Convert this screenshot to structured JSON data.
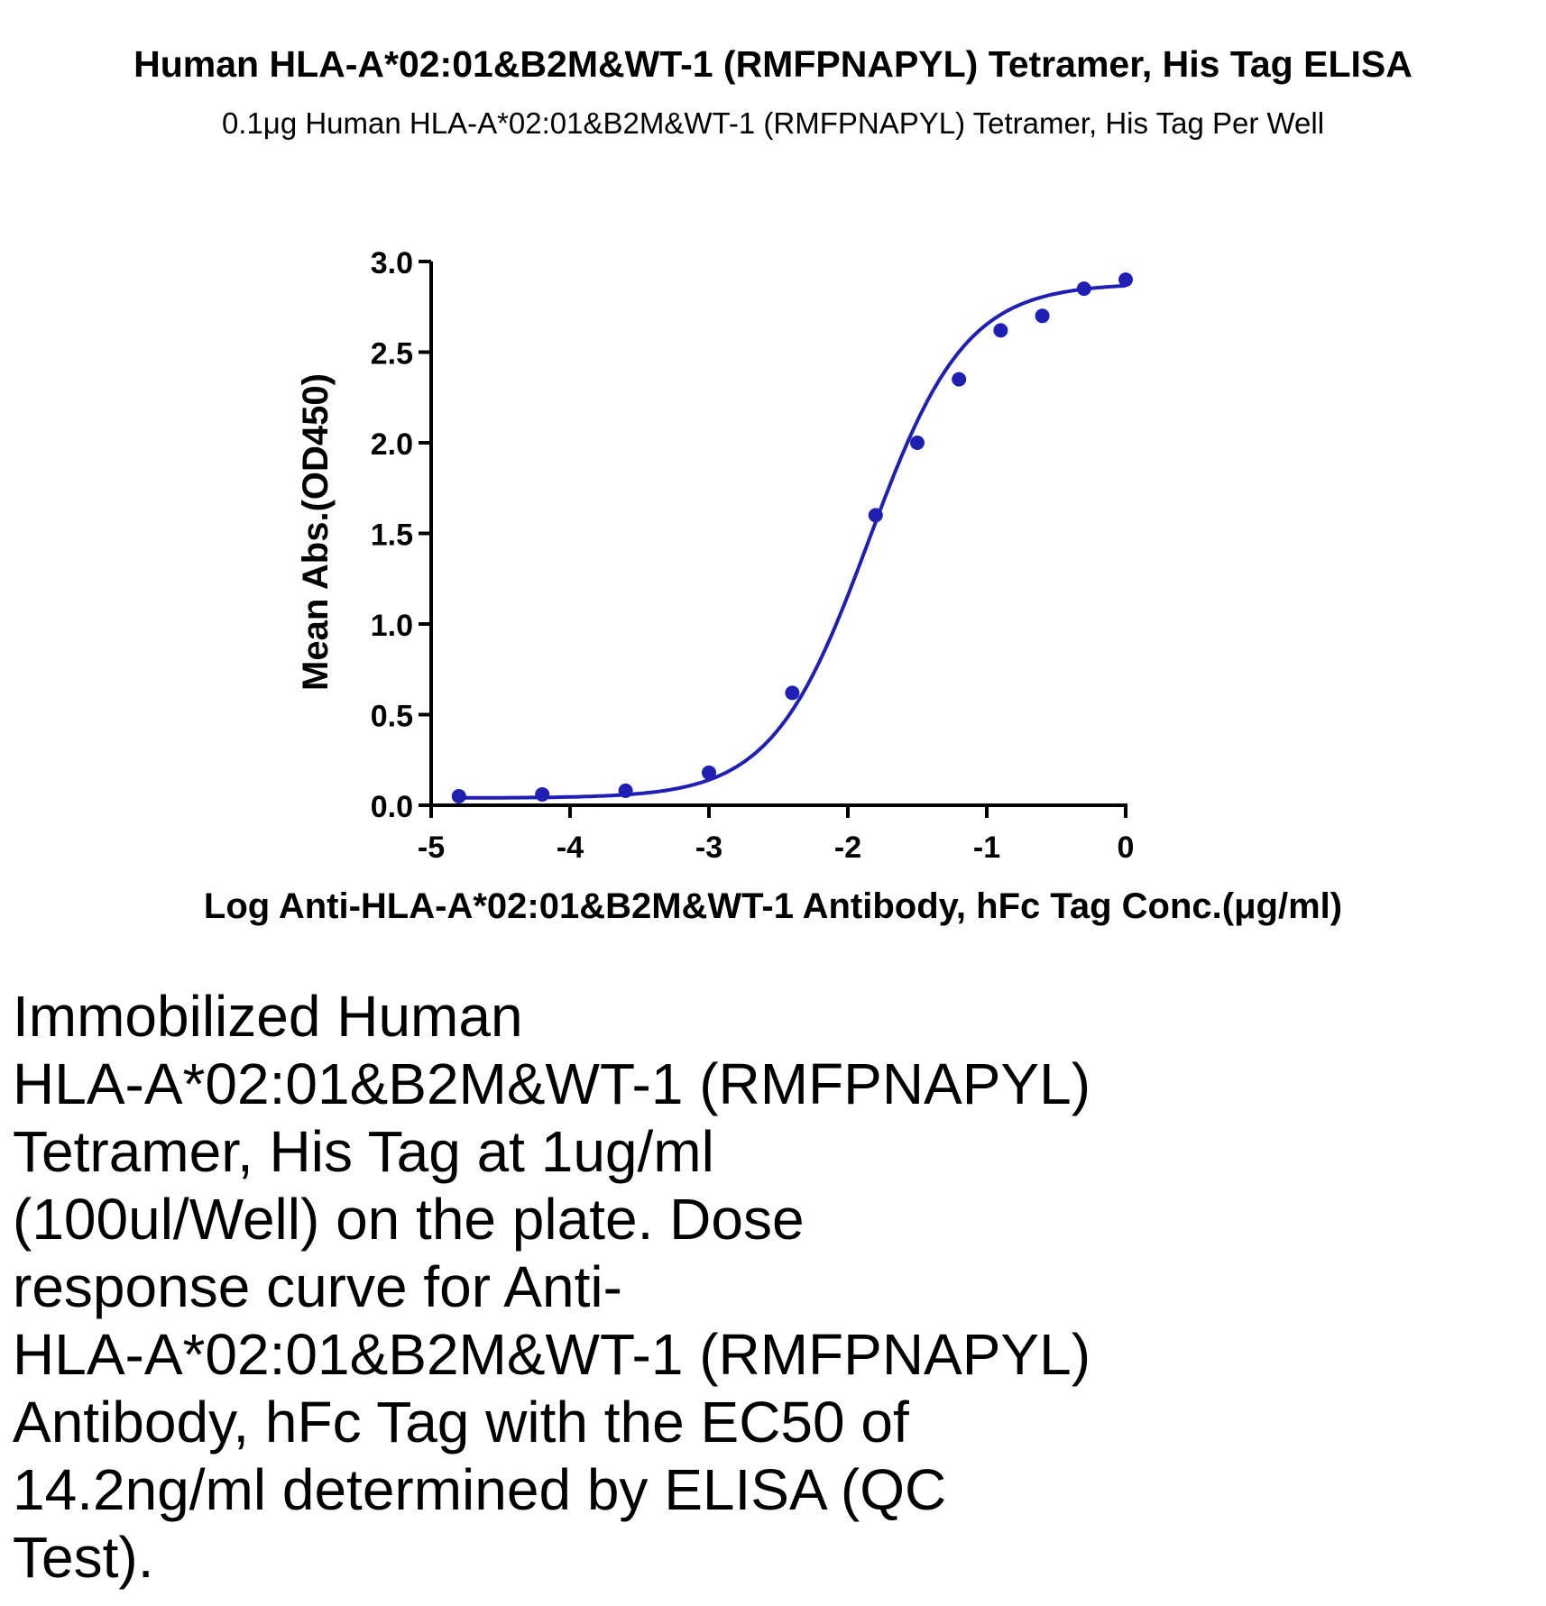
{
  "chart_data": {
    "type": "scatter",
    "title": "Human HLA-A*02:01&B2M&WT-1 (RMFPNAPYL) Tetramer, His Tag ELISA",
    "subtitle": "0.1μg Human HLA-A*02:01&B2M&WT-1 (RMFPNAPYL) Tetramer, His Tag Per Well",
    "xlabel": "Log Anti-HLA-A*02:01&B2M&WT-1 Antibody, hFc Tag Conc.(μg/ml)",
    "ylabel": "Mean Abs.(OD450)",
    "xlim": [
      -5,
      0
    ],
    "ylim": [
      0,
      3.0
    ],
    "x_ticks": [
      "-5",
      "-4",
      "-3",
      "-2",
      "-1",
      "0"
    ],
    "y_ticks": [
      "0.0",
      "0.5",
      "1.0",
      "1.5",
      "2.0",
      "2.5",
      "3.0"
    ],
    "grid": false,
    "color": "#1f1fb4",
    "points": [
      {
        "x": -4.8,
        "y": 0.05
      },
      {
        "x": -4.2,
        "y": 0.06
      },
      {
        "x": -3.6,
        "y": 0.08
      },
      {
        "x": -3.0,
        "y": 0.18
      },
      {
        "x": -2.4,
        "y": 0.62
      },
      {
        "x": -1.8,
        "y": 1.6
      },
      {
        "x": -1.5,
        "y": 2.0
      },
      {
        "x": -1.2,
        "y": 2.35
      },
      {
        "x": -0.9,
        "y": 2.62
      },
      {
        "x": -0.6,
        "y": 2.7
      },
      {
        "x": -0.3,
        "y": 2.85
      },
      {
        "x": 0.0,
        "y": 2.9
      }
    ],
    "fit": {
      "model": "4PL",
      "bottom": 0.04,
      "top": 2.88,
      "log_ec50": -1.85,
      "hill_slope": 1.25
    }
  },
  "caption": [
    "Immobilized Human",
    "HLA-A*02:01&B2M&WT-1 (RMFPNAPYL)",
    "Tetramer, His Tag at 1ug/ml",
    "(100ul/Well) on the plate. Dose",
    "response curve for Anti-",
    "HLA-A*02:01&B2M&WT-1 (RMFPNAPYL)",
    "Antibody, hFc Tag with the EC50 of",
    "14.2ng/ml determined by ELISA (QC",
    "Test)."
  ]
}
